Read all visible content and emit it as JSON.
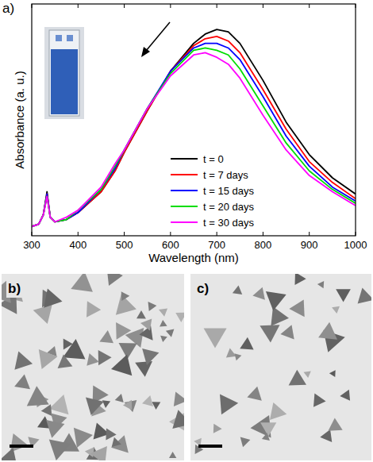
{
  "chart_data": {
    "type": "line",
    "x_label": "Wavelength (nm)",
    "y_label": "Absorbance (a. u.)",
    "x": [
      300,
      315,
      325,
      333,
      340,
      350,
      375,
      400,
      450,
      480,
      500,
      550,
      600,
      650,
      675,
      700,
      725,
      750,
      800,
      850,
      900,
      950,
      1000
    ],
    "series": [
      {
        "name": "t = 0",
        "color": "#000000",
        "values": [
          0.04,
          0.05,
          0.09,
          0.19,
          0.08,
          0.06,
          0.07,
          0.1,
          0.19,
          0.28,
          0.36,
          0.54,
          0.71,
          0.83,
          0.87,
          0.89,
          0.88,
          0.83,
          0.67,
          0.49,
          0.35,
          0.25,
          0.18
        ]
      },
      {
        "name": "t = 7 days",
        "color": "#ff0000",
        "values": [
          0.04,
          0.05,
          0.09,
          0.18,
          0.08,
          0.06,
          0.07,
          0.1,
          0.19,
          0.28,
          0.36,
          0.54,
          0.71,
          0.82,
          0.85,
          0.86,
          0.84,
          0.79,
          0.63,
          0.46,
          0.32,
          0.23,
          0.16
        ]
      },
      {
        "name": "t = 15 days",
        "color": "#0000ff",
        "values": [
          0.04,
          0.05,
          0.09,
          0.18,
          0.08,
          0.06,
          0.07,
          0.1,
          0.2,
          0.29,
          0.37,
          0.55,
          0.71,
          0.81,
          0.83,
          0.83,
          0.81,
          0.76,
          0.6,
          0.43,
          0.3,
          0.21,
          0.15
        ]
      },
      {
        "name": "t = 20 days",
        "color": "#00dd00",
        "values": [
          0.04,
          0.05,
          0.09,
          0.17,
          0.08,
          0.06,
          0.07,
          0.11,
          0.2,
          0.3,
          0.37,
          0.55,
          0.7,
          0.8,
          0.81,
          0.8,
          0.78,
          0.72,
          0.56,
          0.4,
          0.28,
          0.2,
          0.14
        ]
      },
      {
        "name": "t = 30 days",
        "color": "#ff00ff",
        "values": [
          0.04,
          0.05,
          0.09,
          0.17,
          0.08,
          0.06,
          0.08,
          0.11,
          0.21,
          0.31,
          0.37,
          0.55,
          0.69,
          0.78,
          0.79,
          0.77,
          0.74,
          0.68,
          0.52,
          0.37,
          0.26,
          0.19,
          0.13
        ]
      }
    ],
    "xlim": [
      300,
      1000
    ],
    "xticks": [
      300,
      400,
      500,
      600,
      700,
      800,
      900,
      1000
    ],
    "ylim": [
      0,
      1
    ],
    "tick_labels": "x",
    "legend": "lower center",
    "grid": false
  },
  "panel_labels": [
    "a)",
    "b)",
    "c)"
  ]
}
